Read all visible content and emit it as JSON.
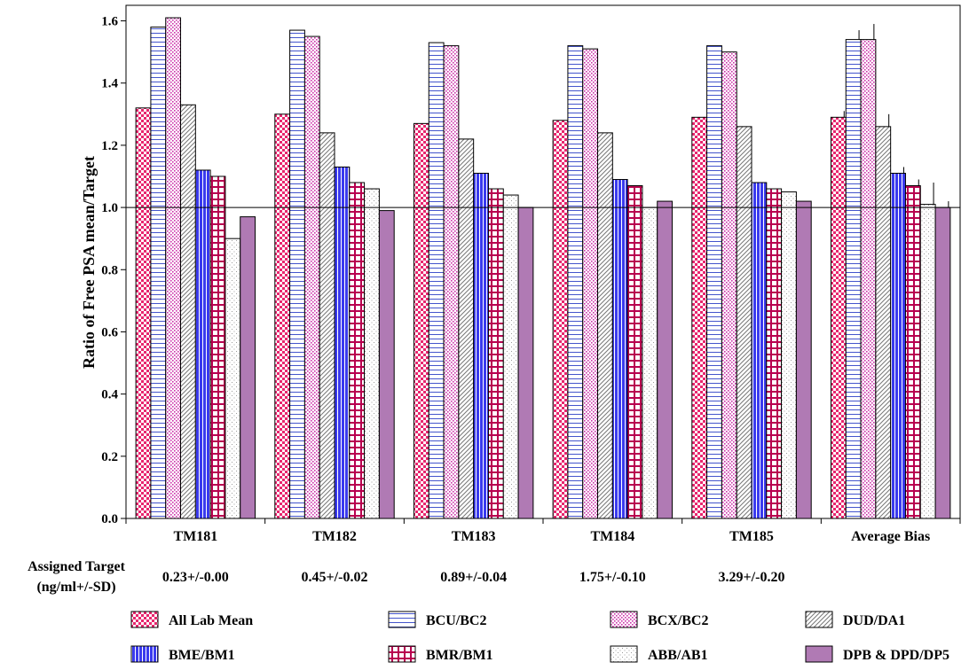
{
  "chart_data": {
    "type": "bar",
    "ylabel": "Ratio of Free PSA mean/Target",
    "ylim": [
      0,
      1.65
    ],
    "yticks": [
      "0.0",
      "0.2",
      "0.4",
      "0.6",
      "0.8",
      "1.0",
      "1.2",
      "1.4",
      "1.6"
    ],
    "reference_line": 1.0,
    "grid": false,
    "legend_position": "bottom",
    "categories": [
      "TM181",
      "TM182",
      "TM183",
      "TM184",
      "TM185",
      "Average Bias"
    ],
    "series": [
      {
        "name": "All Lab Mean",
        "color": "#e8266e",
        "pattern": "checker",
        "values": [
          1.32,
          1.3,
          1.27,
          1.28,
          1.29,
          1.29
        ],
        "errors": [
          null,
          null,
          null,
          null,
          null,
          0.02
        ]
      },
      {
        "name": "BCU/BC2",
        "color": "#4455cc",
        "pattern": "hlines",
        "values": [
          1.58,
          1.57,
          1.53,
          1.52,
          1.52,
          1.54
        ],
        "errors": [
          null,
          null,
          null,
          null,
          null,
          0.03
        ]
      },
      {
        "name": "BCX/BC2",
        "color": "#cc33aa",
        "pattern": "dots",
        "values": [
          1.61,
          1.55,
          1.52,
          1.51,
          1.5,
          1.54
        ],
        "errors": [
          null,
          null,
          null,
          null,
          null,
          0.05
        ]
      },
      {
        "name": "DUD/DA1",
        "color": "#777777",
        "pattern": "diag",
        "values": [
          1.33,
          1.24,
          1.22,
          1.24,
          1.26,
          1.26
        ],
        "errors": [
          null,
          null,
          null,
          null,
          null,
          0.04
        ]
      },
      {
        "name": "BME/BM1",
        "color": "#3a3aee",
        "pattern": "vstripes",
        "values": [
          1.12,
          1.13,
          1.11,
          1.09,
          1.08,
          1.11
        ],
        "errors": [
          null,
          null,
          null,
          null,
          null,
          0.02
        ]
      },
      {
        "name": "BMR/BM1",
        "color": "#b8004f",
        "pattern": "grid",
        "values": [
          1.1,
          1.08,
          1.06,
          1.07,
          1.06,
          1.07
        ],
        "errors": [
          null,
          null,
          null,
          null,
          null,
          0.02
        ]
      },
      {
        "name": "ABB/AB1",
        "color": "#999999",
        "pattern": "sparse",
        "values": [
          0.9,
          1.06,
          1.04,
          1.0,
          1.05,
          1.01
        ],
        "errors": [
          null,
          null,
          null,
          null,
          null,
          0.07
        ]
      },
      {
        "name": "DPB & DPD/DP5",
        "color": "#b07ab4",
        "pattern": "solid",
        "values": [
          0.97,
          0.99,
          1.0,
          1.02,
          1.02,
          1.0
        ],
        "errors": [
          null,
          null,
          null,
          null,
          null,
          0.02
        ]
      }
    ]
  },
  "assigned_target": {
    "label_line1": "Assigned Target",
    "label_line2": "(ng/ml+/-SD)",
    "values": [
      "0.23+/-0.00",
      "0.45+/-0.02",
      "0.89+/-0.04",
      "1.75+/-0.10",
      "3.29+/-0.20"
    ]
  }
}
